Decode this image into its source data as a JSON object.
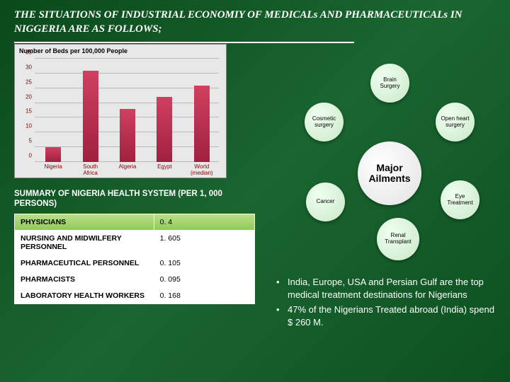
{
  "title": "THE SITUATIONS OF INDUSTRIAL ECONOMIY OF MEDICALs AND PHARMACEUTICALs IN NIGGERIA ARE AS FOLLOWS;",
  "chart": {
    "title": "Number of Beds per 100,000 People",
    "y_max": 35,
    "y_ticks": [
      0,
      5,
      10,
      15,
      20,
      25,
      30,
      35
    ],
    "categories": [
      "Nigeria",
      "South Africa",
      "Algeria",
      "Egypt",
      "World (median)"
    ],
    "values": [
      5,
      31,
      18,
      22,
      26
    ],
    "bar_color": "#b02850",
    "bg_color": "#e8e8e8",
    "grid_color": "#bbbbbb",
    "axis_label_color": "#880000"
  },
  "diagram": {
    "center": "Major Ailments",
    "nodes": [
      "Brain Surgery",
      "Open heart surgery",
      "Eye Treatment",
      "Renal Transplant",
      "Cancer",
      "Cosmetic surgery"
    ]
  },
  "summary_title": "SUMMARY OF NIGERIA HEALTH SYSTEM (PER 1, 000 PERSONS)",
  "table": {
    "rows": [
      {
        "label": "PHYSICIANS",
        "value": "0. 4"
      },
      {
        "label": "NURSING AND MIDWILFERY PERSONNEL",
        "value": "1. 605"
      },
      {
        "label": "PHARMACEUTICAL PERSONNEL",
        "value": "0. 105"
      },
      {
        "label": "PHARMACISTS",
        "value": "0. 095"
      },
      {
        "label": "LABORATORY HEALTH WORKERS",
        "value": "0. 168"
      }
    ],
    "header_bg": "#8fc858"
  },
  "bullets": [
    "India, Europe, USA and Persian Gulf are the top medical treatment destinations for Nigerians",
    "47% of the Nigerians Treated abroad (India) spend $ 260 M."
  ]
}
